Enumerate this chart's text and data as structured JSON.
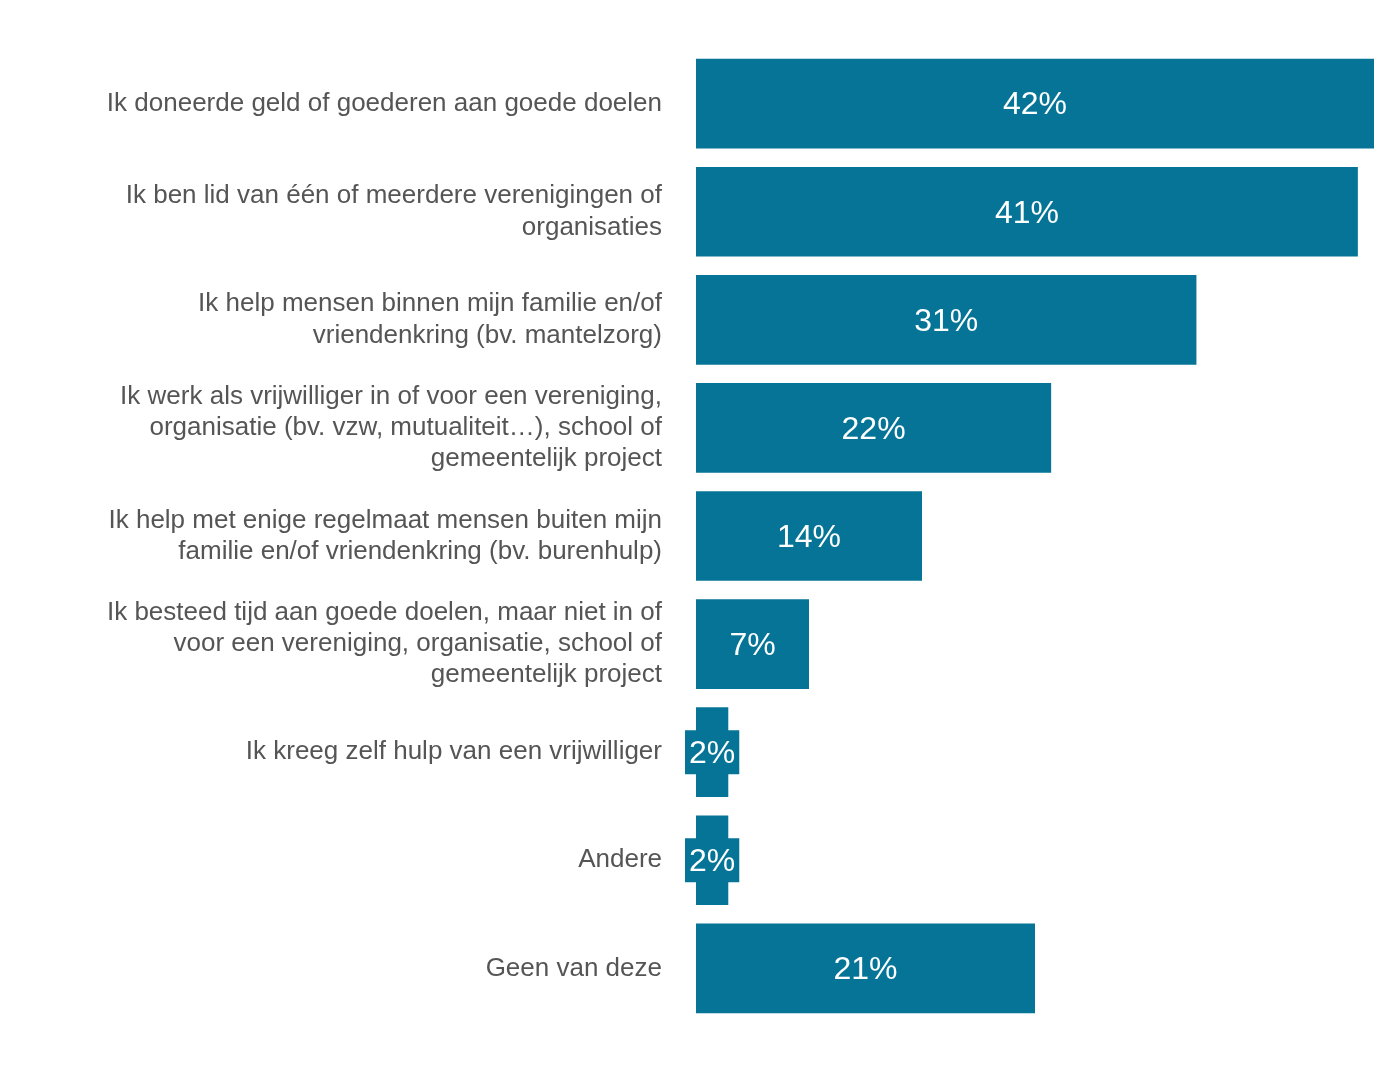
{
  "chart_data": {
    "type": "bar",
    "orientation": "horizontal",
    "categories": [
      "Ik doneerde geld of goederen aan goede doelen",
      "Ik ben lid van één of meerdere verenigingen of organisaties",
      "Ik help mensen binnen mijn familie en/of vriendenkring (bv. mantelzorg)",
      "Ik werk als vrijwilliger in of voor een vereniging, organisatie (bv. vzw, mutualiteit…), school of gemeentelijk project",
      "Ik help met enige regelmaat mensen buiten mijn familie en/of vriendenkring (bv. burenhulp)",
      "Ik besteed tijd aan goede doelen, maar niet in of voor een vereniging, organisatie, school of gemeentelijk project",
      "Ik kreeg zelf hulp van een vrijwilliger",
      "Andere",
      "Geen van deze"
    ],
    "values": [
      42,
      41,
      31,
      22,
      14,
      7,
      2,
      2,
      21
    ],
    "color": "#057497",
    "value_labels": [
      "42%",
      "41%",
      "31%",
      "22%",
      "14%",
      "7%",
      "2%",
      "2%",
      "21%"
    ]
  }
}
